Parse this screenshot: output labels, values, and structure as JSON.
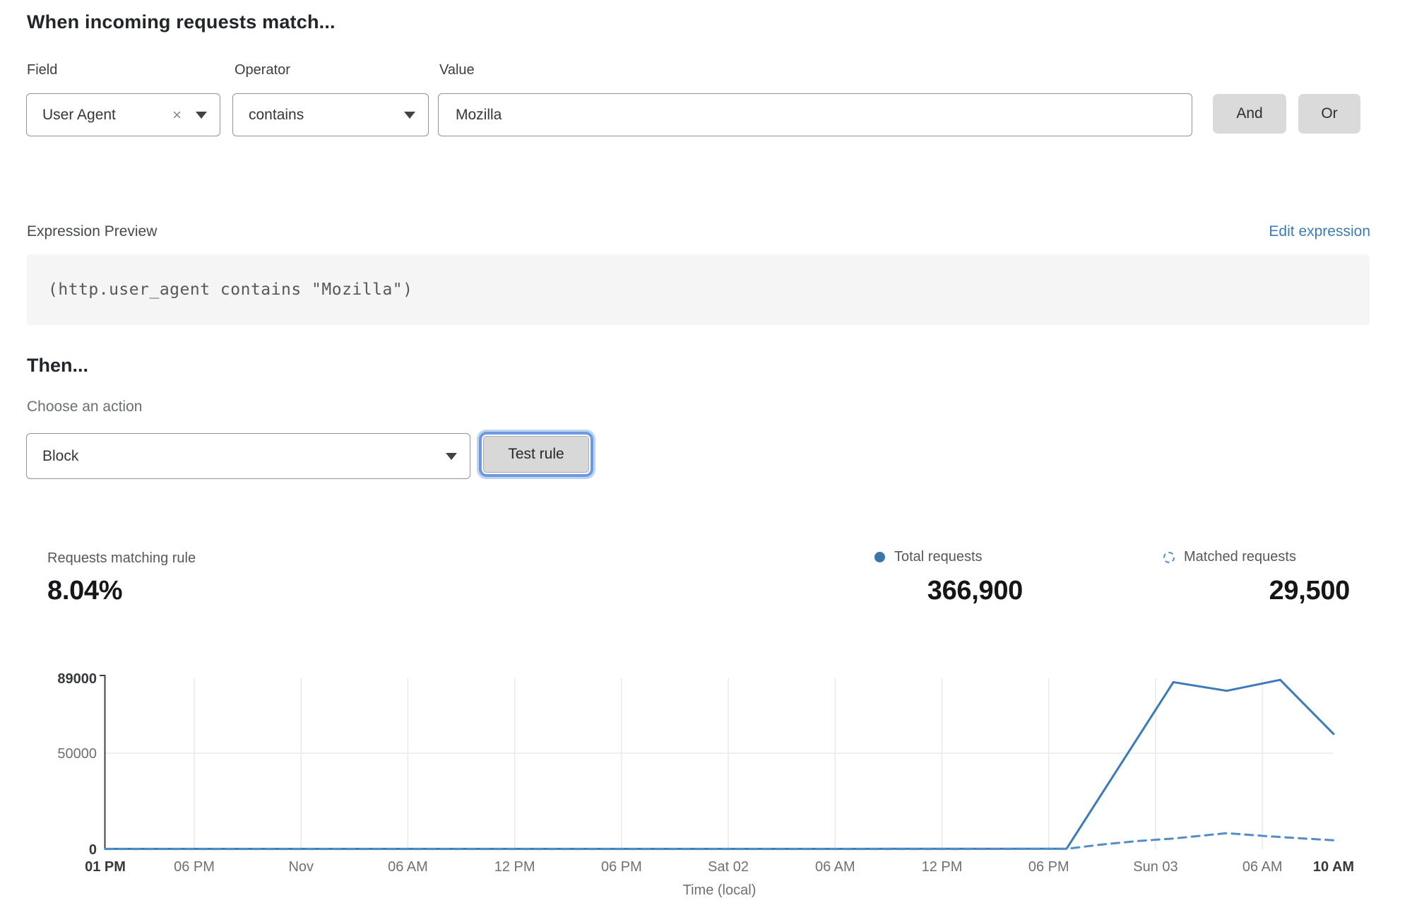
{
  "rule_builder": {
    "heading": "When incoming requests match...",
    "field": {
      "label": "Field",
      "value": "User Agent"
    },
    "operator": {
      "label": "Operator",
      "value": "contains"
    },
    "value": {
      "label": "Value",
      "value": "Mozilla"
    },
    "and_label": "And",
    "or_label": "Or"
  },
  "expression": {
    "label": "Expression Preview",
    "edit_link": "Edit expression",
    "code": "(http.user_agent contains \"Mozilla\")"
  },
  "action": {
    "heading": "Then...",
    "choose_label": "Choose an action",
    "value": "Block",
    "test_button": "Test rule"
  },
  "stats": {
    "matching": {
      "label": "Requests matching rule",
      "value": "8.04%"
    },
    "total": {
      "label": "Total requests",
      "value": "366,900"
    },
    "matched": {
      "label": "Matched requests",
      "value": "29,500"
    }
  },
  "colors": {
    "chart_primary": "#3a7ab8",
    "chart_secondary": "#548dc6",
    "legend_dot": "#3b76ab",
    "link_blue": "#3d7bb7",
    "grid": "#e8eaeb",
    "axis": "#3f4348"
  },
  "chart_data": {
    "type": "line",
    "title": "",
    "xlabel": "Time (local)",
    "ylabel": "",
    "ylim": [
      0,
      89000
    ],
    "x_span_hours": 69,
    "x_note": "hours since first tick (01 PM); 6-hour ticks, Nov = Fri Nov 01 midnight, Sat 02 / Sun 03 = midnights, window ends Sun 10 AM",
    "grid_color": "#e8eaeb",
    "axis_color": "#3f4348",
    "legend_position": "above-right",
    "legend": [
      {
        "name": "Total requests",
        "marker": "solid-dot"
      },
      {
        "name": "Matched requests",
        "marker": "dashed-circle"
      }
    ],
    "y_ticks": [
      {
        "value": 89000,
        "label": "89000",
        "bold": true,
        "grid": false
      },
      {
        "value": 50000,
        "label": "50000",
        "bold": false,
        "grid": true
      },
      {
        "value": 0,
        "label": "0",
        "bold": true,
        "grid": false
      }
    ],
    "x_ticks": [
      {
        "hour": 0,
        "label": "01 PM",
        "bold": true,
        "grid": false
      },
      {
        "hour": 5,
        "label": "06 PM",
        "bold": false,
        "grid": true
      },
      {
        "hour": 11,
        "label": "Nov",
        "bold": false,
        "grid": true
      },
      {
        "hour": 17,
        "label": "06 AM",
        "bold": false,
        "grid": true
      },
      {
        "hour": 23,
        "label": "12 PM",
        "bold": false,
        "grid": true
      },
      {
        "hour": 29,
        "label": "06 PM",
        "bold": false,
        "grid": true
      },
      {
        "hour": 35,
        "label": "Sat 02",
        "bold": false,
        "grid": true
      },
      {
        "hour": 41,
        "label": "06 AM",
        "bold": false,
        "grid": true
      },
      {
        "hour": 47,
        "label": "12 PM",
        "bold": false,
        "grid": true
      },
      {
        "hour": 53,
        "label": "06 PM",
        "bold": false,
        "grid": true
      },
      {
        "hour": 59,
        "label": "Sun 03",
        "bold": false,
        "grid": true
      },
      {
        "hour": 65,
        "label": "06 AM",
        "bold": false,
        "grid": true
      },
      {
        "hour": 69,
        "label": "10 AM",
        "bold": true,
        "grid": false
      }
    ],
    "series": [
      {
        "name": "Total requests",
        "style": "solid",
        "color": "#3a7ab8",
        "points": [
          [
            0,
            250
          ],
          [
            6,
            220
          ],
          [
            12,
            240
          ],
          [
            18,
            230
          ],
          [
            24,
            250
          ],
          [
            30,
            240
          ],
          [
            36,
            230
          ],
          [
            42,
            250
          ],
          [
            48,
            260
          ],
          [
            54,
            300
          ],
          [
            60,
            87000
          ],
          [
            63,
            82500
          ],
          [
            66,
            88200
          ],
          [
            69,
            60000
          ]
        ]
      },
      {
        "name": "Matched requests",
        "style": "dashed",
        "color": "#548dc6",
        "points": [
          [
            0,
            150
          ],
          [
            12,
            150
          ],
          [
            24,
            150
          ],
          [
            36,
            140
          ],
          [
            48,
            160
          ],
          [
            54,
            250
          ],
          [
            56,
            2500
          ],
          [
            58,
            4300
          ],
          [
            60,
            5600
          ],
          [
            63,
            8400
          ],
          [
            65,
            7000
          ],
          [
            67,
            5800
          ],
          [
            69,
            4700
          ]
        ]
      }
    ]
  }
}
